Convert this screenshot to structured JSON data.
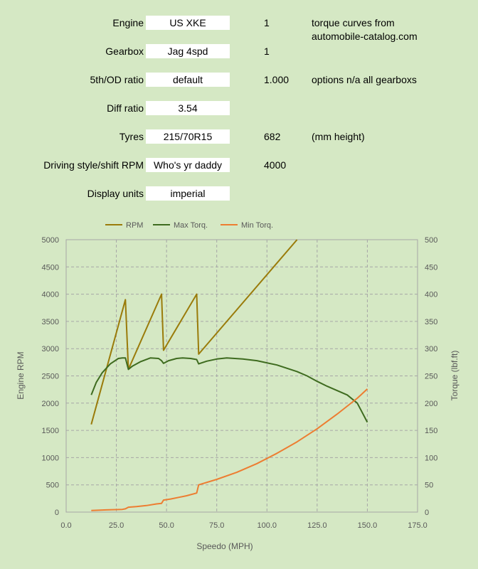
{
  "settings": [
    {
      "label": "Engine",
      "value": "US XKE",
      "num": "1",
      "note": "torque curves from",
      "note2": "automobile-catalog.com"
    },
    {
      "label": "Gearbox",
      "value": "Jag 4spd",
      "num": "1",
      "note": ""
    },
    {
      "label": "5th/OD ratio",
      "value": "default",
      "num": "1.000",
      "note": "options n/a all gearboxs"
    },
    {
      "label": "Diff ratio",
      "value": "3.54",
      "num": "",
      "note": ""
    },
    {
      "label": "Tyres",
      "value": "215/70R15",
      "num": "682",
      "note": "(mm height)"
    },
    {
      "label": "Driving style/shift RPM",
      "value": "Who's yr daddy",
      "num": "4000",
      "note": ""
    },
    {
      "label": "Display units",
      "value": "imperial",
      "num": "",
      "note": ""
    }
  ],
  "chart_data": {
    "type": "line",
    "xlabel": "Speedo (MPH)",
    "ylabel": "Engine RPM",
    "y2label": "Torque (lbf.ft)",
    "xlim": [
      0,
      175
    ],
    "ylim": [
      0,
      5000
    ],
    "y2lim": [
      0,
      500
    ],
    "xticks": [
      "0.0",
      "25.0",
      "50.0",
      "75.0",
      "100.0",
      "125.0",
      "150.0",
      "175.0"
    ],
    "yticks": [
      "0",
      "500",
      "1000",
      "1500",
      "2000",
      "2500",
      "3000",
      "3500",
      "4000",
      "4500",
      "5000"
    ],
    "y2ticks": [
      "0",
      "50",
      "100",
      "150",
      "200",
      "250",
      "300",
      "350",
      "400",
      "450",
      "500"
    ],
    "grid": true,
    "legend_position": "top",
    "series": [
      {
        "name": "RPM",
        "axis": "left",
        "color": "#9a7b0a",
        "points": [
          [
            12.5,
            1610
          ],
          [
            29.5,
            3900
          ],
          [
            31,
            2620
          ],
          [
            47.5,
            4000
          ],
          [
            48.5,
            2970
          ],
          [
            65,
            4000
          ],
          [
            66,
            2900
          ],
          [
            115,
            5000
          ]
        ]
      },
      {
        "name": "Max Torq.",
        "axis": "right",
        "color": "#3e6b1f",
        "points": [
          [
            12.5,
            215
          ],
          [
            15,
            238
          ],
          [
            18,
            256
          ],
          [
            22,
            272
          ],
          [
            26,
            282
          ],
          [
            28,
            283
          ],
          [
            29.5,
            283
          ],
          [
            31,
            262
          ],
          [
            33,
            268
          ],
          [
            37,
            276
          ],
          [
            42,
            283
          ],
          [
            46,
            282
          ],
          [
            47.5,
            278
          ],
          [
            48.5,
            273
          ],
          [
            51,
            278
          ],
          [
            55,
            282
          ],
          [
            58,
            283
          ],
          [
            62,
            282
          ],
          [
            65,
            280
          ],
          [
            66,
            272
          ],
          [
            70,
            277
          ],
          [
            75,
            281
          ],
          [
            80,
            283
          ],
          [
            88,
            281
          ],
          [
            95,
            278
          ],
          [
            105,
            270
          ],
          [
            115,
            258
          ],
          [
            120,
            250
          ],
          [
            125,
            240
          ],
          [
            130,
            231
          ],
          [
            135,
            223
          ],
          [
            140,
            215
          ],
          [
            145,
            200
          ],
          [
            150,
            165
          ]
        ]
      },
      {
        "name": "Min Torq.",
        "axis": "right",
        "color": "#ed7d31",
        "points": [
          [
            12.5,
            3
          ],
          [
            20,
            4
          ],
          [
            28,
            5
          ],
          [
            29.5,
            6
          ],
          [
            31,
            9
          ],
          [
            35,
            10
          ],
          [
            40,
            12
          ],
          [
            45,
            15
          ],
          [
            47.5,
            16
          ],
          [
            48.5,
            22
          ],
          [
            52,
            24
          ],
          [
            56,
            27
          ],
          [
            60,
            30
          ],
          [
            65,
            35
          ],
          [
            66,
            50
          ],
          [
            75,
            60
          ],
          [
            85,
            73
          ],
          [
            95,
            89
          ],
          [
            105,
            108
          ],
          [
            115,
            129
          ],
          [
            125,
            153
          ],
          [
            135,
            180
          ],
          [
            145,
            209
          ],
          [
            150,
            226
          ]
        ]
      }
    ]
  }
}
